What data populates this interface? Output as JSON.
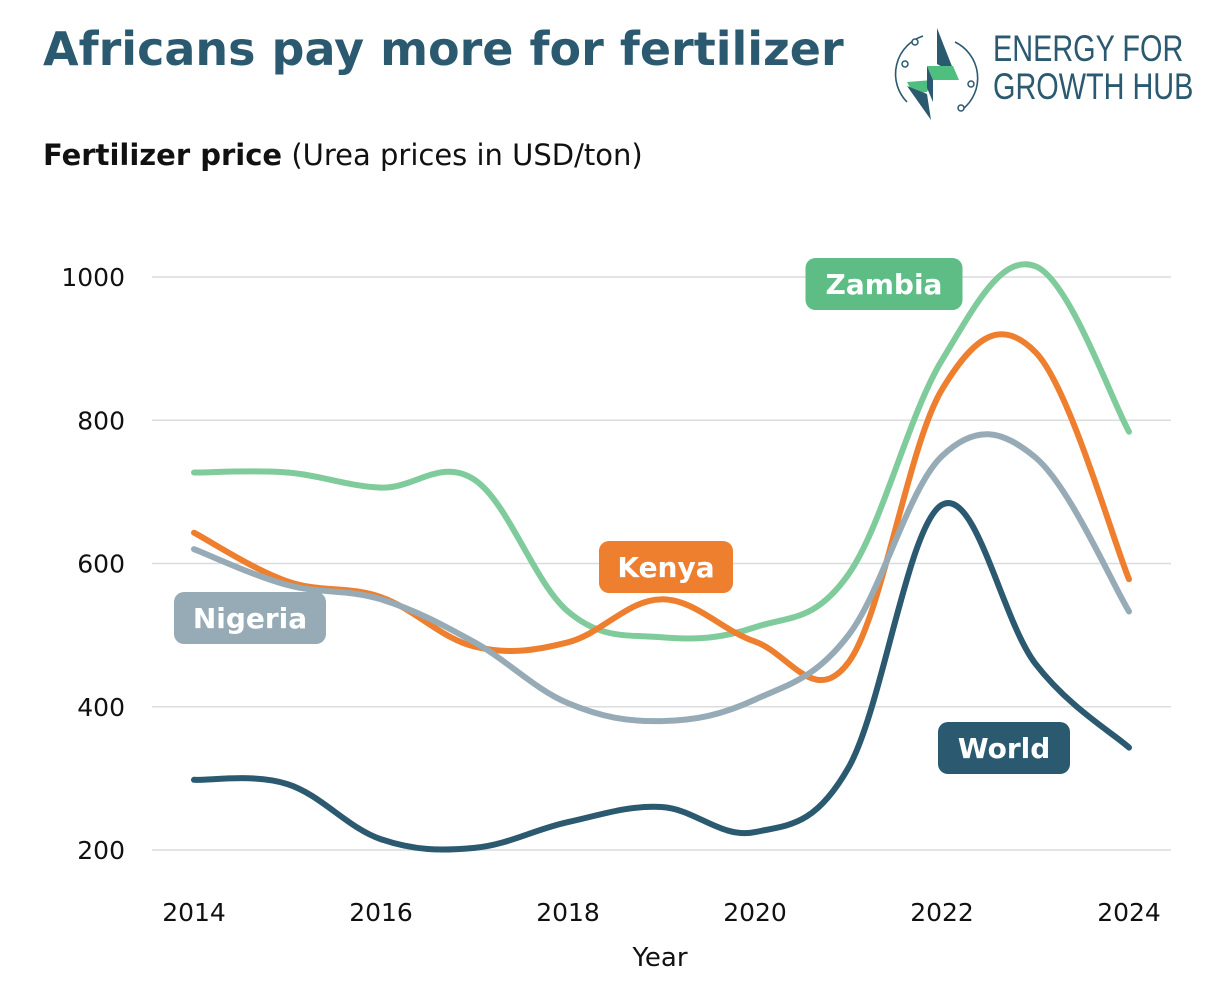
{
  "header": {
    "title": "Africans pay more for fertilizer",
    "subtitle_bold": "Fertilizer price",
    "subtitle_light": "(Urea prices in USD/ton)"
  },
  "logo": {
    "line1": "ENERGY FOR",
    "line2": "GROWTH HUB",
    "icon": "lightning-bolt-circuit-icon",
    "colors": {
      "navy": "#2b5a70",
      "green": "#4fbf7f"
    }
  },
  "chart_data": {
    "type": "line",
    "title": "Fertilizer price",
    "subtitle": "(Urea prices in USD/ton)",
    "xlabel": "Year",
    "ylabel": "",
    "x": [
      2014,
      2015,
      2016,
      2017,
      2018,
      2019,
      2020,
      2021,
      2022,
      2023,
      2024
    ],
    "xlim": [
      2014,
      2024
    ],
    "ylim": [
      200,
      1000
    ],
    "x_ticks": [
      "2014",
      "2016",
      "2018",
      "2020",
      "2022",
      "2024"
    ],
    "y_ticks": [
      "200",
      "400",
      "600",
      "800",
      "1000"
    ],
    "grid": true,
    "legend": "inline labels",
    "series": [
      {
        "name": "Zambia",
        "color": "#80cb9c",
        "label_color": "#5dbd85",
        "values": [
          727,
          727,
          706,
          717,
          533,
          497,
          511,
          585,
          884,
          1015,
          784
        ]
      },
      {
        "name": "Kenya",
        "color": "#ee7f2f",
        "label_color": "#ee7f2f",
        "values": [
          643,
          575,
          553,
          484,
          490,
          550,
          491,
          462,
          843,
          895,
          578
        ]
      },
      {
        "name": "Nigeria",
        "color": "#97abb7",
        "label_color": "#97abb7",
        "values": [
          620,
          570,
          550,
          490,
          405,
          380,
          410,
          500,
          750,
          748,
          533
        ]
      },
      {
        "name": "World",
        "color": "#2b5a70",
        "label_color": "#2b5a70",
        "values": [
          298,
          292,
          215,
          203,
          239,
          260,
          225,
          315,
          682,
          460,
          343
        ]
      }
    ]
  }
}
